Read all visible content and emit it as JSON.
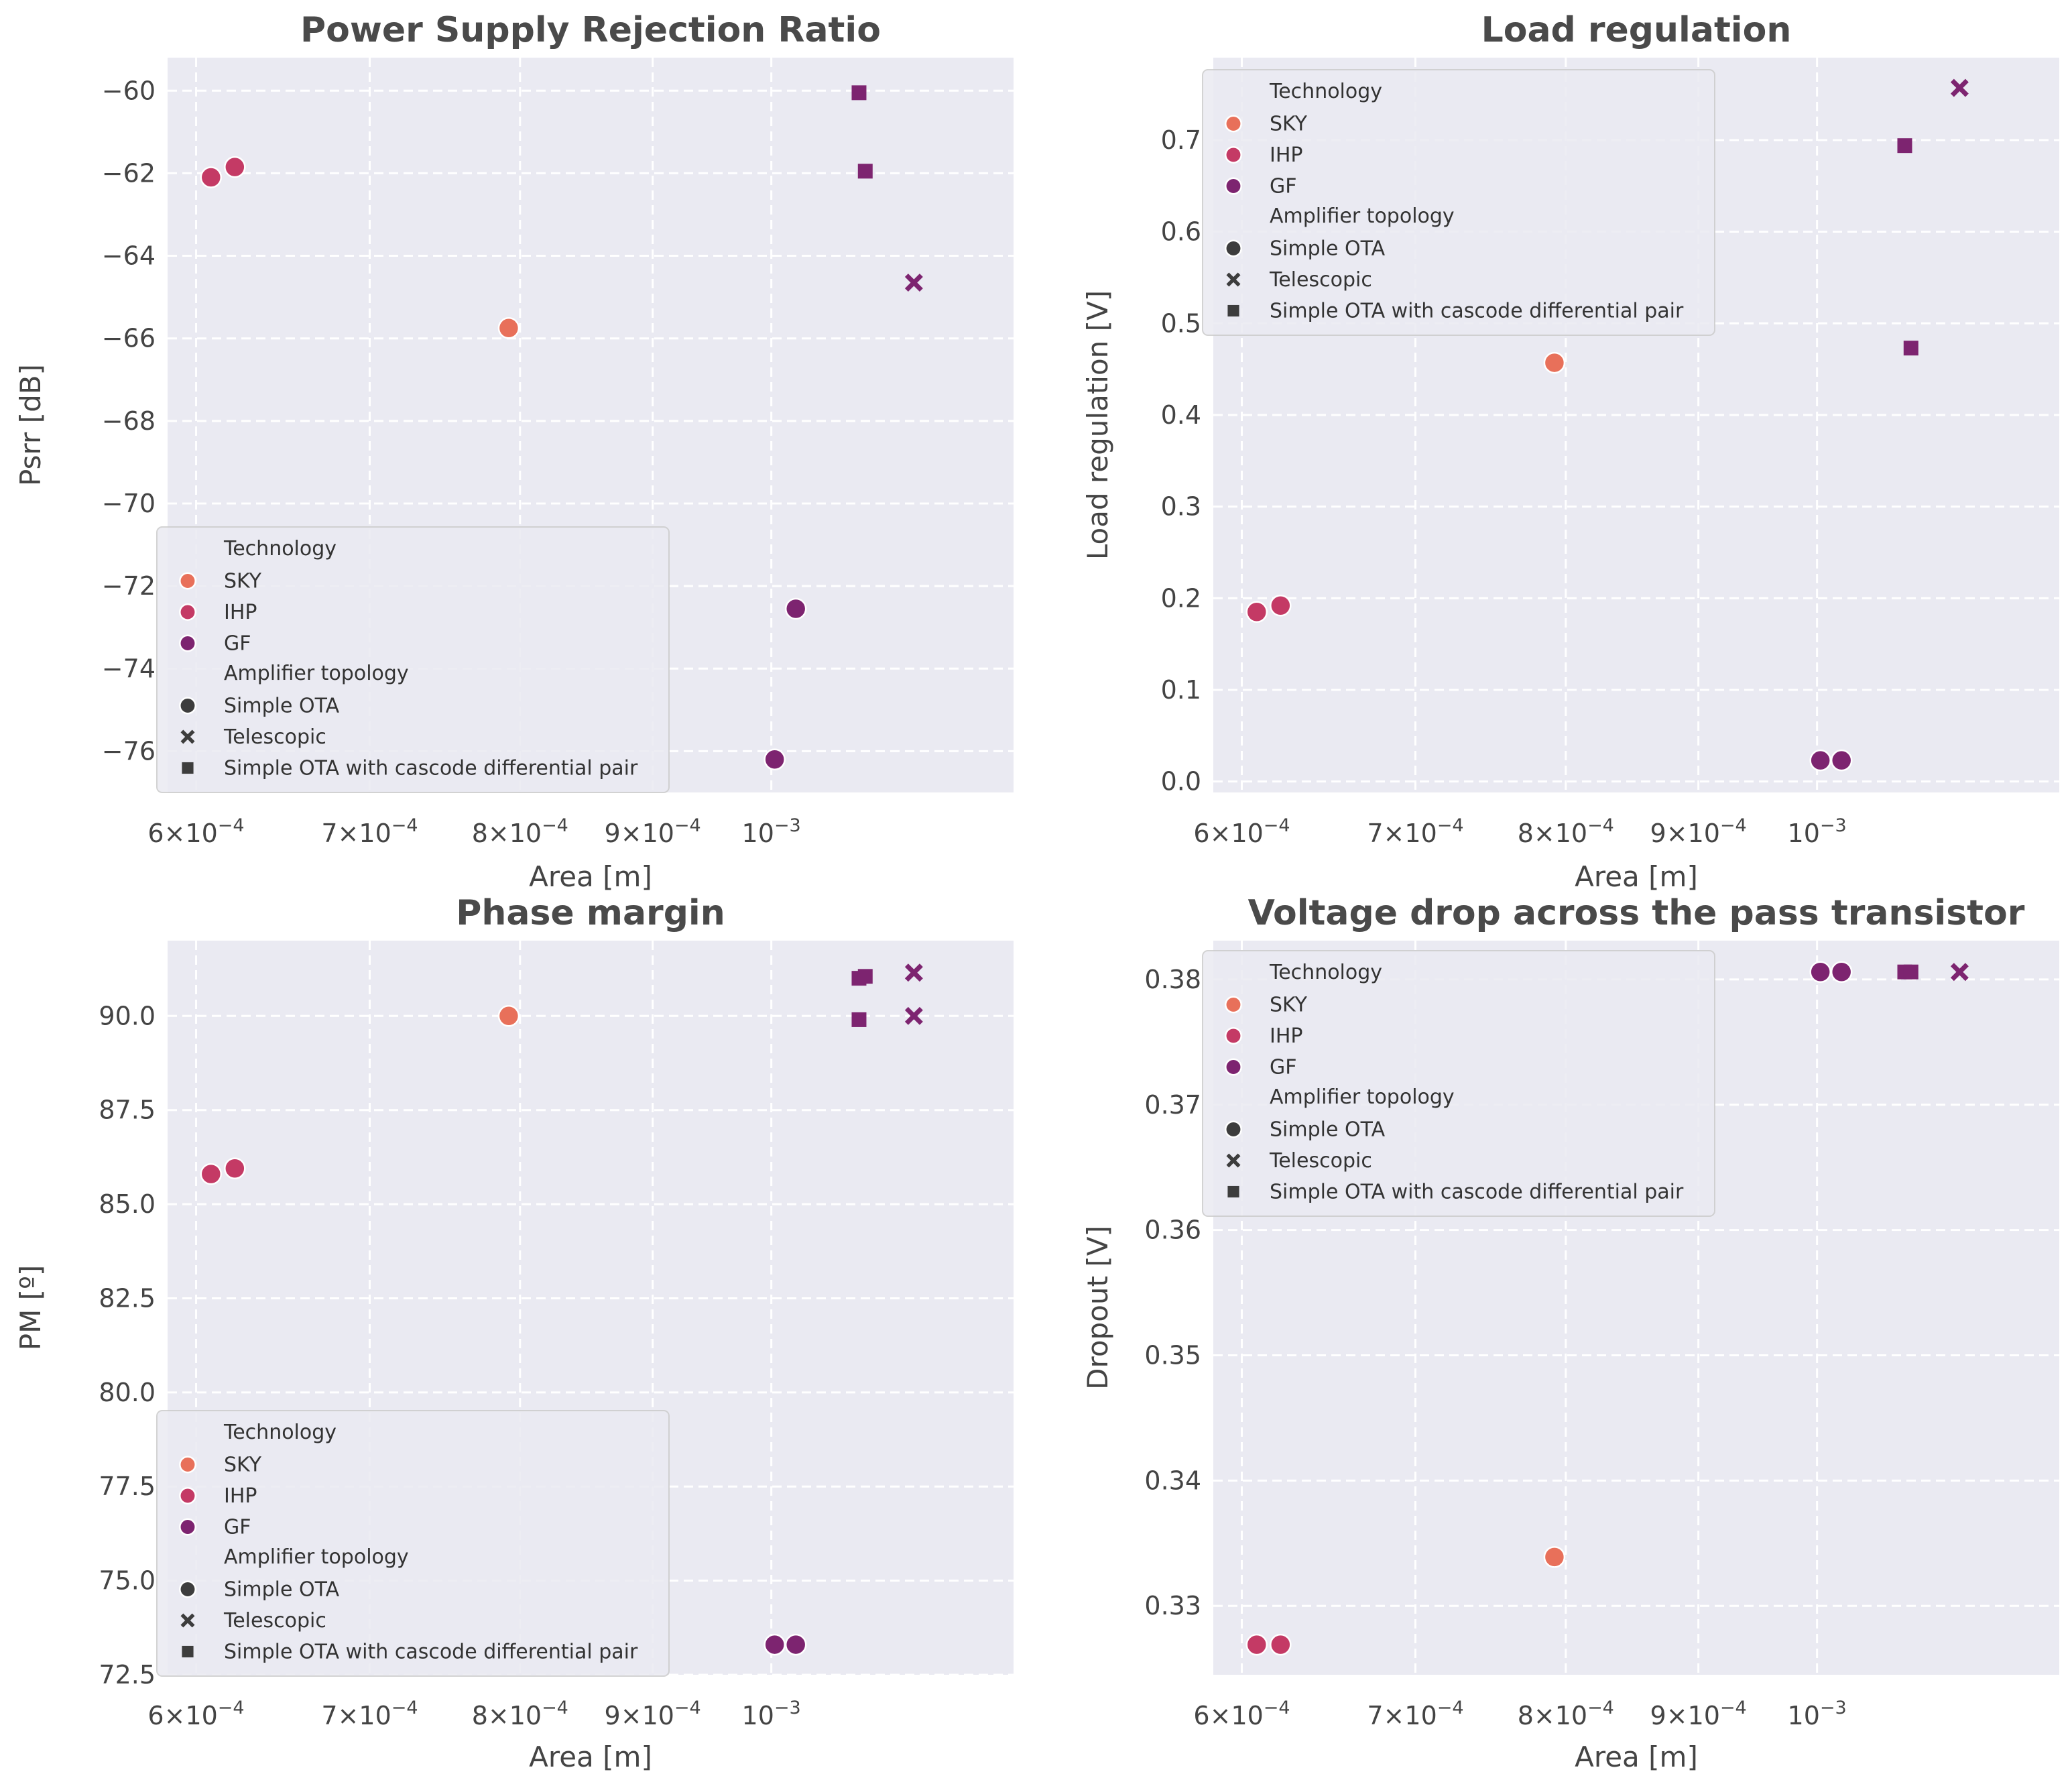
{
  "chart_data": [
    {
      "type": "scatter",
      "title": "Power Supply Rejection Ratio",
      "xlabel": "Area [m]",
      "ylabel": "Psrr [dB]",
      "xscale": "log",
      "xlim": [
        0.000585,
        0.00124
      ],
      "ylim": [
        -77,
        -59.2
      ],
      "xticks": [
        {
          "value": 0.0006,
          "base": "6×10",
          "exp": "−4"
        },
        {
          "value": 0.0007,
          "base": "7×10",
          "exp": "−4"
        },
        {
          "value": 0.0008,
          "base": "8×10",
          "exp": "−4"
        },
        {
          "value": 0.0009,
          "base": "9×10",
          "exp": "−4"
        },
        {
          "value": 0.001,
          "base": "10",
          "exp": "−3"
        }
      ],
      "yticks": [
        -60,
        -62,
        -64,
        -66,
        -68,
        -70,
        -72,
        -74,
        -76
      ],
      "ytick_labels": [
        "−60",
        "−62",
        "−64",
        "−66",
        "−68",
        "−70",
        "−72",
        "−74",
        "−76"
      ],
      "legend_position": "bottom-left",
      "points": [
        {
          "x": 0.000608,
          "y": -62.1,
          "tech": "IHP",
          "topology": "Simple OTA"
        },
        {
          "x": 0.000621,
          "y": -61.85,
          "tech": "IHP",
          "topology": "Simple OTA"
        },
        {
          "x": 0.000792,
          "y": -65.75,
          "tech": "SKY",
          "topology": "Simple OTA"
        },
        {
          "x": 0.001003,
          "y": -76.2,
          "tech": "GF",
          "topology": "Simple OTA"
        },
        {
          "x": 0.001022,
          "y": -72.55,
          "tech": "GF",
          "topology": "Simple OTA"
        },
        {
          "x": 0.001081,
          "y": -60.05,
          "tech": "GF",
          "topology": "Simple OTA with cascode differential pair"
        },
        {
          "x": 0.001087,
          "y": -61.95,
          "tech": "GF",
          "topology": "Simple OTA with cascode differential pair"
        },
        {
          "x": 0.001135,
          "y": -64.65,
          "tech": "GF",
          "topology": "Telescopic"
        }
      ]
    },
    {
      "type": "scatter",
      "title": "Load regulation",
      "xlabel": "Area [m]",
      "ylabel": "Load regulation [V]",
      "xscale": "log",
      "xlim": [
        0.000585,
        0.00124
      ],
      "ylim": [
        -0.012,
        0.79
      ],
      "xticks": [
        {
          "value": 0.0006,
          "base": "6×10",
          "exp": "−4"
        },
        {
          "value": 0.0007,
          "base": "7×10",
          "exp": "−4"
        },
        {
          "value": 0.0008,
          "base": "8×10",
          "exp": "−4"
        },
        {
          "value": 0.0009,
          "base": "9×10",
          "exp": "−4"
        },
        {
          "value": 0.001,
          "base": "10",
          "exp": "−3"
        }
      ],
      "yticks": [
        0.0,
        0.1,
        0.2,
        0.3,
        0.4,
        0.5,
        0.6,
        0.7
      ],
      "ytick_labels": [
        "0.0",
        "0.1",
        "0.2",
        "0.3",
        "0.4",
        "0.5",
        "0.6",
        "0.7"
      ],
      "legend_position": "top-left",
      "points": [
        {
          "x": 0.000608,
          "y": 0.185,
          "tech": "IHP",
          "topology": "Simple OTA"
        },
        {
          "x": 0.000621,
          "y": 0.192,
          "tech": "IHP",
          "topology": "Simple OTA"
        },
        {
          "x": 0.000792,
          "y": 0.457,
          "tech": "SKY",
          "topology": "Simple OTA"
        },
        {
          "x": 0.001003,
          "y": 0.023,
          "tech": "GF",
          "topology": "Simple OTA"
        },
        {
          "x": 0.001022,
          "y": 0.023,
          "tech": "GF",
          "topology": "Simple OTA"
        },
        {
          "x": 0.001081,
          "y": 0.694,
          "tech": "GF",
          "topology": "Simple OTA with cascode differential pair"
        },
        {
          "x": 0.001087,
          "y": 0.473,
          "tech": "GF",
          "topology": "Simple OTA with cascode differential pair"
        },
        {
          "x": 0.001135,
          "y": 0.757,
          "tech": "GF",
          "topology": "Telescopic"
        }
      ]
    },
    {
      "type": "scatter",
      "title": "Phase margin",
      "xlabel": "Area [m]",
      "ylabel": "PM [º]",
      "xscale": "log",
      "xlim": [
        0.000585,
        0.00124
      ],
      "ylim": [
        72.5,
        92
      ],
      "xticks": [
        {
          "value": 0.0006,
          "base": "6×10",
          "exp": "−4"
        },
        {
          "value": 0.0007,
          "base": "7×10",
          "exp": "−4"
        },
        {
          "value": 0.0008,
          "base": "8×10",
          "exp": "−4"
        },
        {
          "value": 0.0009,
          "base": "9×10",
          "exp": "−4"
        },
        {
          "value": 0.001,
          "base": "10",
          "exp": "−3"
        }
      ],
      "yticks": [
        72.5,
        75.0,
        77.5,
        80.0,
        82.5,
        85.0,
        87.5,
        90.0
      ],
      "ytick_labels": [
        "72.5",
        "75.0",
        "77.5",
        "80.0",
        "82.5",
        "85.0",
        "87.5",
        "90.0"
      ],
      "legend_position": "bottom-left",
      "points": [
        {
          "x": 0.000608,
          "y": 85.8,
          "tech": "IHP",
          "topology": "Simple OTA"
        },
        {
          "x": 0.000621,
          "y": 85.95,
          "tech": "IHP",
          "topology": "Simple OTA"
        },
        {
          "x": 0.000792,
          "y": 90.0,
          "tech": "SKY",
          "topology": "Simple OTA"
        },
        {
          "x": 0.001003,
          "y": 73.3,
          "tech": "GF",
          "topology": "Simple OTA"
        },
        {
          "x": 0.001022,
          "y": 73.3,
          "tech": "GF",
          "topology": "Simple OTA"
        },
        {
          "x": 0.001081,
          "y": 91.0,
          "tech": "GF",
          "topology": "Simple OTA with cascode differential pair"
        },
        {
          "x": 0.001087,
          "y": 91.05,
          "tech": "GF",
          "topology": "Simple OTA with cascode differential pair"
        },
        {
          "x": 0.001081,
          "y": 89.9,
          "tech": "GF",
          "topology": "Simple OTA with cascode differential pair"
        },
        {
          "x": 0.001135,
          "y": 91.15,
          "tech": "GF",
          "topology": "Telescopic"
        },
        {
          "x": 0.001135,
          "y": 90.0,
          "tech": "GF",
          "topology": "Telescopic"
        }
      ]
    },
    {
      "type": "scatter",
      "title": "Voltage drop across the pass transistor",
      "xlabel": "Area [m]",
      "ylabel": "Dropout [V]",
      "xscale": "log",
      "xlim": [
        0.000585,
        0.00124
      ],
      "ylim": [
        0.3245,
        0.3831
      ],
      "xticks": [
        {
          "value": 0.0006,
          "base": "6×10",
          "exp": "−4"
        },
        {
          "value": 0.0007,
          "base": "7×10",
          "exp": "−4"
        },
        {
          "value": 0.0008,
          "base": "8×10",
          "exp": "−4"
        },
        {
          "value": 0.0009,
          "base": "9×10",
          "exp": "−4"
        },
        {
          "value": 0.001,
          "base": "10",
          "exp": "−3"
        }
      ],
      "yticks": [
        0.33,
        0.34,
        0.35,
        0.36,
        0.37,
        0.38
      ],
      "ytick_labels": [
        "0.33",
        "0.34",
        "0.35",
        "0.36",
        "0.37",
        "0.38"
      ],
      "legend_position": "top-left",
      "points": [
        {
          "x": 0.000608,
          "y": 0.3269,
          "tech": "IHP",
          "topology": "Simple OTA"
        },
        {
          "x": 0.000621,
          "y": 0.3269,
          "tech": "IHP",
          "topology": "Simple OTA"
        },
        {
          "x": 0.000792,
          "y": 0.3339,
          "tech": "SKY",
          "topology": "Simple OTA"
        },
        {
          "x": 0.001003,
          "y": 0.3806,
          "tech": "GF",
          "topology": "Simple OTA"
        },
        {
          "x": 0.001022,
          "y": 0.3806,
          "tech": "GF",
          "topology": "Simple OTA"
        },
        {
          "x": 0.001081,
          "y": 0.3806,
          "tech": "GF",
          "topology": "Simple OTA with cascode differential pair"
        },
        {
          "x": 0.001087,
          "y": 0.3806,
          "tech": "GF",
          "topology": "Simple OTA with cascode differential pair"
        },
        {
          "x": 0.001135,
          "y": 0.3806,
          "tech": "GF",
          "topology": "Telescopic"
        }
      ]
    }
  ],
  "legend": {
    "technology_title": "Technology",
    "technologies": [
      {
        "name": "SKY",
        "color": "#e8705a"
      },
      {
        "name": "IHP",
        "color": "#c43a65"
      },
      {
        "name": "GF",
        "color": "#7d2470"
      }
    ],
    "topology_title": "Amplifier topology",
    "topologies": [
      {
        "name": "Simple OTA",
        "marker": "circle"
      },
      {
        "name": "Telescopic",
        "marker": "x"
      },
      {
        "name": "Simple OTA with cascode differential pair",
        "marker": "square"
      }
    ]
  },
  "colors": {
    "axes_bg": "#eaeaf2",
    "grid": "#ffffff",
    "marker_neutral": "#3d3d3d"
  }
}
